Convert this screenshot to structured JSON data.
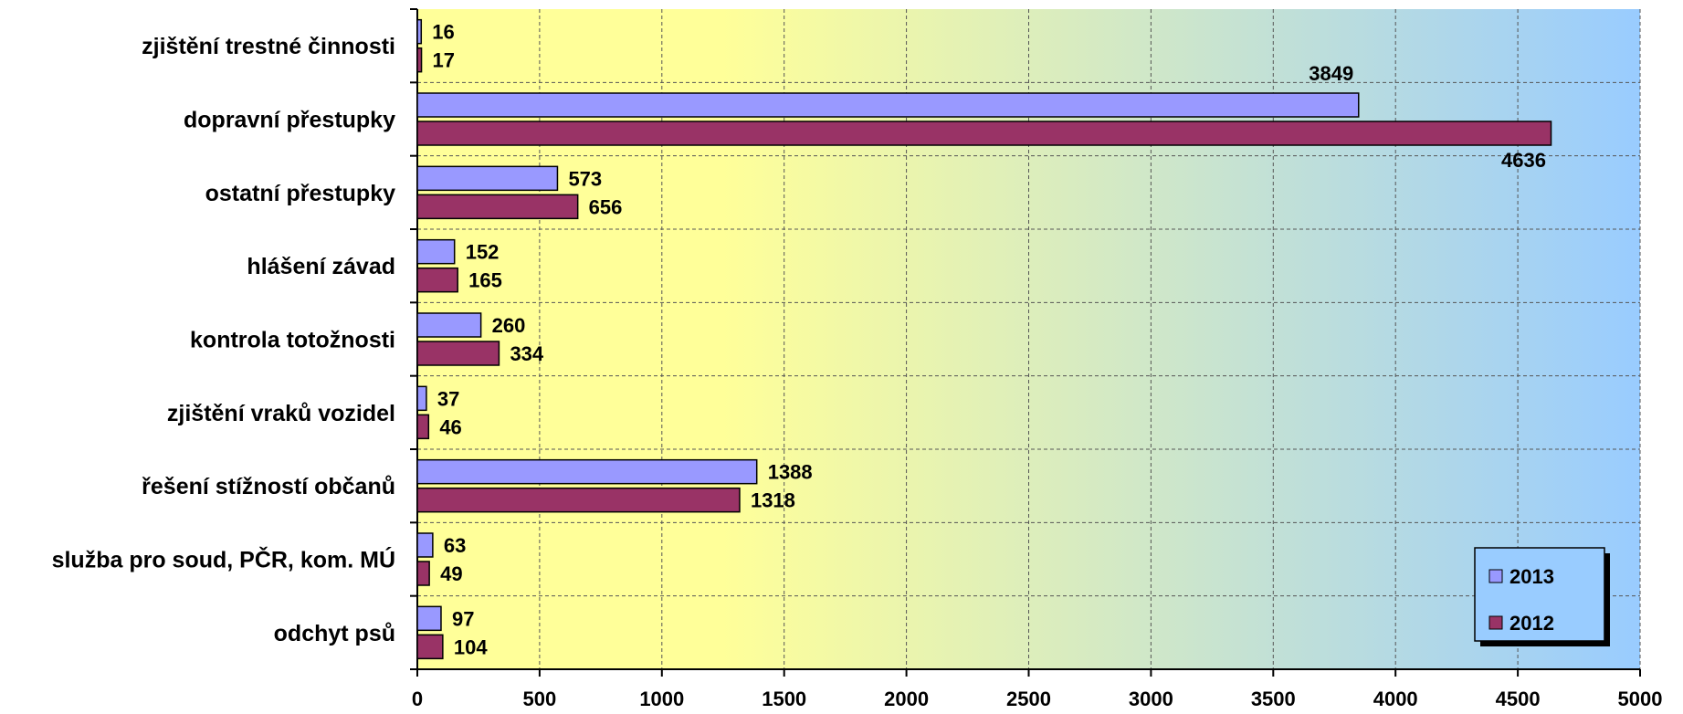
{
  "chart_data": {
    "type": "bar",
    "orientation": "horizontal",
    "categories": [
      "zjištění trestné činnosti",
      "dopravní přestupky",
      "ostatní přestupky",
      "hlášení závad",
      "kontrola totožnosti",
      "zjištění vraků vozidel",
      "řešení stížností občanů",
      "služba pro soud, PČR, kom. MÚ",
      "odchyt psů"
    ],
    "series": [
      {
        "name": "2013",
        "color": "#9999ff",
        "values": [
          16,
          3849,
          573,
          152,
          260,
          37,
          1388,
          63,
          97
        ]
      },
      {
        "name": "2012",
        "color": "#993366",
        "values": [
          17,
          4636,
          656,
          165,
          334,
          46,
          1318,
          49,
          104
        ]
      }
    ],
    "xlim": [
      0,
      5000
    ],
    "xticks": [
      0,
      500,
      1000,
      1500,
      2000,
      2500,
      3000,
      3500,
      4000,
      4500,
      5000
    ],
    "grid": true,
    "background_gradient": [
      "#ffff99",
      "#99ccff"
    ],
    "legend_position": "bottom-right",
    "title": "",
    "xlabel": "",
    "ylabel": ""
  }
}
